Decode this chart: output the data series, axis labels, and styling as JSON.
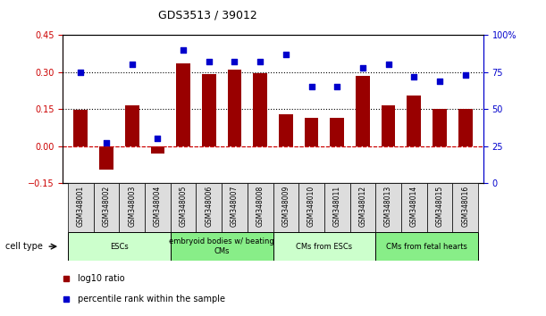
{
  "title": "GDS3513 / 39012",
  "samples": [
    "GSM348001",
    "GSM348002",
    "GSM348003",
    "GSM348004",
    "GSM348005",
    "GSM348006",
    "GSM348007",
    "GSM348008",
    "GSM348009",
    "GSM348010",
    "GSM348011",
    "GSM348012",
    "GSM348013",
    "GSM348014",
    "GSM348015",
    "GSM348016"
  ],
  "log10_ratio": [
    0.148,
    -0.095,
    0.165,
    -0.03,
    0.335,
    0.29,
    0.31,
    0.295,
    0.13,
    0.115,
    0.115,
    0.285,
    0.165,
    0.205,
    0.152,
    0.152
  ],
  "percentile_rank": [
    75,
    27,
    80,
    30,
    90,
    82,
    82,
    82,
    87,
    65,
    65,
    78,
    80,
    72,
    69,
    73
  ],
  "bar_color": "#990000",
  "dot_color": "#0000cc",
  "ylim_left": [
    -0.15,
    0.45
  ],
  "ylim_right": [
    0,
    100
  ],
  "yticks_left": [
    -0.15,
    0.0,
    0.15,
    0.3,
    0.45
  ],
  "yticks_right": [
    0,
    25,
    50,
    75,
    100
  ],
  "cell_type_groups": [
    {
      "label": "ESCs",
      "start": 0,
      "end": 3,
      "color": "#ccffcc"
    },
    {
      "label": "embryoid bodies w/ beating\nCMs",
      "start": 4,
      "end": 7,
      "color": "#88ee88"
    },
    {
      "label": "CMs from ESCs",
      "start": 8,
      "end": 11,
      "color": "#ccffcc"
    },
    {
      "label": "CMs from fetal hearts",
      "start": 12,
      "end": 15,
      "color": "#88ee88"
    }
  ],
  "legend_bar_label": "log10 ratio",
  "legend_dot_label": "percentile rank within the sample",
  "cell_type_label": "cell type",
  "bg_color": "#ffffff"
}
